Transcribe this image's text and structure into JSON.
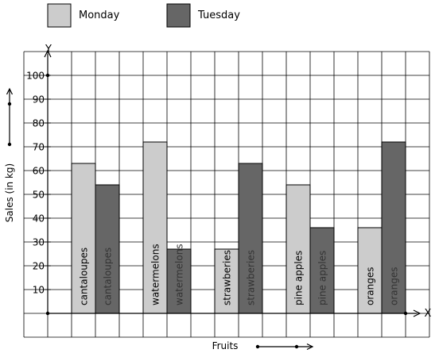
{
  "chart_data": {
    "type": "bar",
    "title": "",
    "xlabel": "Fruits",
    "ylabel": "Sales (in kg)",
    "y_axis_letter": "Y",
    "x_axis_letter": "X",
    "ylim": [
      0,
      100
    ],
    "yticks": [
      "10",
      "20",
      "30",
      "40",
      "50",
      "60",
      "70",
      "80",
      "90",
      "100"
    ],
    "categories": [
      "cantaloupes",
      "watermelons",
      "strawberies",
      "pine apples",
      "oranges"
    ],
    "series": [
      {
        "name": "Monday",
        "color": "#cccccc",
        "values": [
          63,
          72,
          27,
          54,
          36
        ]
      },
      {
        "name": "Tuesday",
        "color": "#666666",
        "values": [
          54,
          27,
          63,
          36,
          72
        ]
      }
    ],
    "grid": true,
    "legend_position": "top-left"
  }
}
